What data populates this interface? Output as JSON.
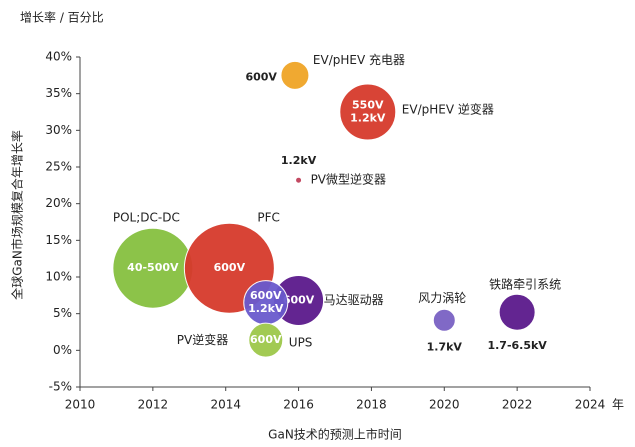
{
  "chart_data": {
    "type": "bubble",
    "title": "增长率 / 百分比",
    "x_label": "GaN技术的预测上市时间",
    "x_unit": "年",
    "y_label": "全球GaN市场规模复合年增长率",
    "xlim": [
      2010,
      2024
    ],
    "xticks": [
      2010,
      2012,
      2014,
      2016,
      2018,
      2020,
      2022,
      2024
    ],
    "ylim": [
      -5,
      40
    ],
    "yticks": [
      {
        "value": -5,
        "label": "-5%"
      },
      {
        "value": 0,
        "label": "0%"
      },
      {
        "value": 5,
        "label": "5%"
      },
      {
        "value": 10,
        "label": "10%"
      },
      {
        "value": 15,
        "label": "15%"
      },
      {
        "value": 20,
        "label": "20%"
      },
      {
        "value": 25,
        "label": "25%"
      },
      {
        "value": 30,
        "label": "30%"
      },
      {
        "value": 35,
        "label": "35%"
      },
      {
        "value": 40,
        "label": "40%"
      }
    ],
    "points": [
      {
        "name": "EV/pHEV 充电器",
        "x": 2015.9,
        "y": 37.5,
        "size": 14,
        "color": "#f0a526",
        "tags": [
          "600V"
        ],
        "tag_position": "left"
      },
      {
        "name": "EV/pHEV 逆变器",
        "x": 2017.9,
        "y": 32.5,
        "size": 28,
        "color": "#d63a2c",
        "tags": [
          "550V",
          "1.2kV"
        ],
        "tag_position": "inside"
      },
      {
        "name": "PV微型逆变器",
        "x": 2016,
        "y": 23.2,
        "size": 3,
        "color": "#c0405a",
        "tags": [
          "1.2kV"
        ],
        "tag_position": "above"
      },
      {
        "name": "POL;DC-DC",
        "x": 2012,
        "y": 11.2,
        "size": 40,
        "color": "#86c040",
        "tags": [
          "40-500V"
        ],
        "tag_position": "inside"
      },
      {
        "name": "PFC",
        "x": 2014.1,
        "y": 11.2,
        "size": 45,
        "color": "#d63a2c",
        "tags": [
          "600V"
        ],
        "tag_position": "inside"
      },
      {
        "name": "马达驱动器",
        "x": 2016,
        "y": 6.8,
        "size": 25,
        "color": "#5b1a8c",
        "tags": [
          "600V"
        ],
        "tag_position": "inside"
      },
      {
        "name": "PV逆变器",
        "x": 2015.1,
        "y": 6.5,
        "size": 22,
        "color": "#6a5acd",
        "tags": [
          "600V",
          "1.2kV"
        ],
        "tag_position": "inside"
      },
      {
        "name": "UPS",
        "x": 2015.1,
        "y": 1.4,
        "size": 17,
        "color": "#9ec84a",
        "tags": [
          "600V"
        ],
        "tag_position": "inside"
      },
      {
        "name": "风力涡轮",
        "x": 2020,
        "y": 4.1,
        "size": 11,
        "color": "#7a62c4",
        "tags": [
          "1.7kV"
        ],
        "tag_position": "below"
      },
      {
        "name": "铁路牵引系统",
        "x": 2022,
        "y": 5.2,
        "size": 18,
        "color": "#5b1a8c",
        "tags": [
          "1.7-6.5kV"
        ],
        "tag_position": "below"
      }
    ]
  }
}
